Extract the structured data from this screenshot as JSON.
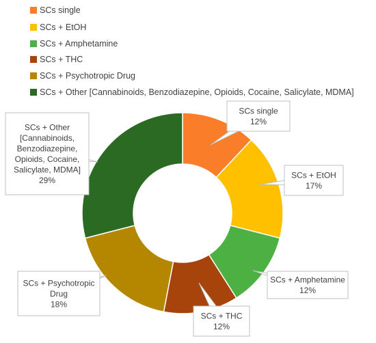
{
  "chart_data": {
    "type": "pie",
    "donut": true,
    "legend_position": "top-left",
    "categories": [
      "SCs single",
      "SCs + EtOH",
      "SCs + Amphetamine",
      "SCs + THC",
      "SCs + Psychotropic Drug",
      "SCs + Other [Cannabinoids, Benzodiazepine, Opioids, Cocaine, Salicylate, MDMA]"
    ],
    "values": [
      12,
      17,
      12,
      12,
      18,
      29
    ],
    "colors": [
      "#fa7d2a",
      "#ffc000",
      "#4db043",
      "#a7440c",
      "#b58600",
      "#2a6a23"
    ],
    "data_labels": [
      {
        "lines": [
          "SCs single",
          "12%"
        ]
      },
      {
        "lines": [
          "SCs + EtOH",
          "17%"
        ]
      },
      {
        "lines": [
          "SCs + Amphetamine",
          "12%"
        ]
      },
      {
        "lines": [
          "SCs + THC",
          "12%"
        ]
      },
      {
        "lines": [
          "SCs + Psychotropic",
          "Drug",
          "18%"
        ]
      },
      {
        "lines": [
          "SCs + Other",
          "[Cannabinoids,",
          "Benzodiazepine,",
          "Opioids, Cocaine,",
          "Salicylate, MDMA]",
          "29%"
        ]
      }
    ]
  }
}
